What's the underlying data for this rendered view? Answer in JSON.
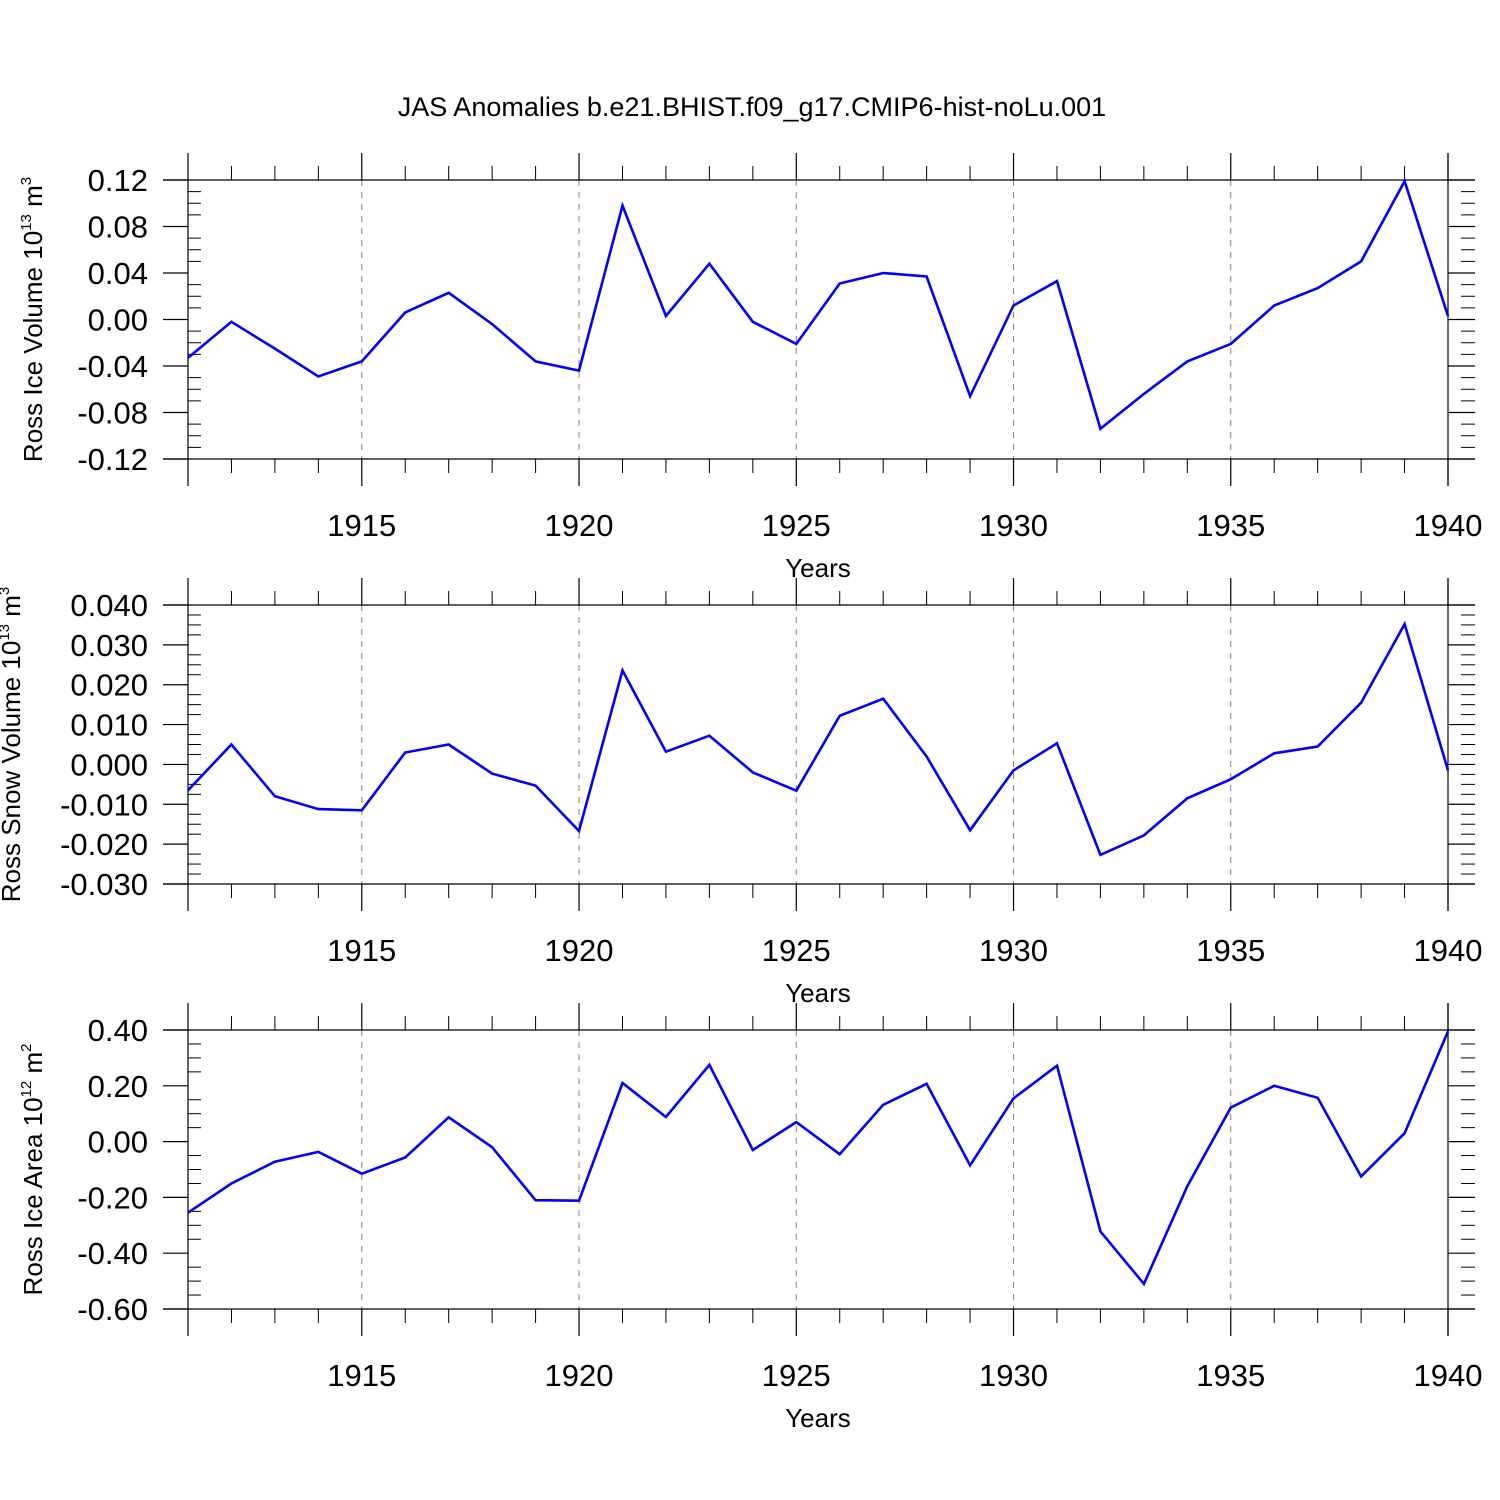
{
  "title": "JAS Anomalies b.e21.BHIST.f09_g17.CMIP6-hist-noLu.001",
  "colors": {
    "line": "#0000ff",
    "axis": "#000000",
    "grid": "#808080"
  },
  "chart_data": [
    {
      "type": "line",
      "ylabel": {
        "prefix": "Ross Ice Volume 10",
        "exp": "13",
        "unit": " m",
        "unit_exp": "3"
      },
      "xlabel": "Years",
      "xlim": [
        1911,
        1940
      ],
      "ylim": [
        -0.12,
        0.12
      ],
      "yticks": [
        -0.12,
        -0.08,
        -0.04,
        0.0,
        0.04,
        0.08,
        0.12
      ],
      "ytick_labels": [
        "-0.12",
        "-0.08",
        "-0.04",
        "0.00",
        "0.04",
        "0.08",
        "0.12"
      ],
      "xticks": [
        1915,
        1920,
        1925,
        1930,
        1935,
        1940
      ],
      "xtick_labels": [
        "1915",
        "1920",
        "1925",
        "1930",
        "1935",
        "1940"
      ],
      "x": [
        1911,
        1912,
        1913,
        1914,
        1915,
        1916,
        1917,
        1918,
        1919,
        1920,
        1921,
        1922,
        1923,
        1924,
        1925,
        1926,
        1927,
        1928,
        1929,
        1930,
        1931,
        1932,
        1933,
        1934,
        1935,
        1936,
        1937,
        1938,
        1939,
        1940
      ],
      "series": [
        {
          "values": [
            -0.033,
            -0.002,
            -0.025,
            -0.049,
            -0.036,
            0.006,
            0.023,
            -0.004,
            -0.036,
            -0.044,
            0.098,
            0.003,
            0.048,
            -0.002,
            -0.021,
            0.031,
            0.04,
            0.037,
            -0.066,
            0.012,
            0.033,
            -0.094,
            -0.064,
            -0.036,
            -0.021,
            0.012,
            0.027,
            0.05,
            0.119,
            0.003
          ]
        }
      ]
    },
    {
      "type": "line",
      "ylabel": {
        "prefix": "Ross Snow Volume 10",
        "exp": "13",
        "unit": " m",
        "unit_exp": "3"
      },
      "xlabel": "Years",
      "xlim": [
        1911,
        1940
      ],
      "ylim": [
        -0.03,
        0.04
      ],
      "yticks": [
        -0.03,
        -0.02,
        -0.01,
        0.0,
        0.01,
        0.02,
        0.03,
        0.04
      ],
      "ytick_labels": [
        "-0.030",
        "-0.020",
        "-0.010",
        "0.000",
        "0.010",
        "0.020",
        "0.030",
        "0.040"
      ],
      "xticks": [
        1915,
        1920,
        1925,
        1930,
        1935,
        1940
      ],
      "xtick_labels": [
        "1915",
        "1920",
        "1925",
        "1930",
        "1935",
        "1940"
      ],
      "x": [
        1911,
        1912,
        1913,
        1914,
        1915,
        1916,
        1917,
        1918,
        1919,
        1920,
        1921,
        1922,
        1923,
        1924,
        1925,
        1926,
        1927,
        1928,
        1929,
        1930,
        1931,
        1932,
        1933,
        1934,
        1935,
        1936,
        1937,
        1938,
        1939,
        1940
      ],
      "series": [
        {
          "values": [
            -0.0065,
            0.005,
            -0.008,
            -0.0112,
            -0.0115,
            0.003,
            0.005,
            -0.0023,
            -0.0053,
            -0.0167,
            0.0236,
            0.0032,
            0.0072,
            -0.002,
            -0.0066,
            0.0122,
            0.0165,
            0.002,
            -0.0165,
            -0.0015,
            0.0053,
            -0.0227,
            -0.0178,
            -0.0085,
            -0.0037,
            0.0028,
            0.0045,
            0.0155,
            0.0352,
            -0.0015
          ]
        }
      ]
    },
    {
      "type": "line",
      "ylabel": {
        "prefix": "Ross Ice Area 10",
        "exp": "12",
        "unit": " m",
        "unit_exp": "2"
      },
      "xlabel": "Years",
      "xlim": [
        1911,
        1940
      ],
      "ylim": [
        -0.6,
        0.4
      ],
      "yticks": [
        -0.6,
        -0.4,
        -0.2,
        0.0,
        0.2,
        0.4
      ],
      "ytick_labels": [
        "-0.60",
        "-0.40",
        "-0.20",
        "0.00",
        "0.20",
        "0.40"
      ],
      "xticks": [
        1915,
        1920,
        1925,
        1930,
        1935,
        1940
      ],
      "xtick_labels": [
        "1915",
        "1920",
        "1925",
        "1930",
        "1935",
        "1940"
      ],
      "x": [
        1911,
        1912,
        1913,
        1914,
        1915,
        1916,
        1917,
        1918,
        1919,
        1920,
        1921,
        1922,
        1923,
        1924,
        1925,
        1926,
        1927,
        1928,
        1929,
        1930,
        1931,
        1932,
        1933,
        1934,
        1935,
        1936,
        1937,
        1938,
        1939,
        1940
      ],
      "series": [
        {
          "values": [
            -0.255,
            -0.15,
            -0.072,
            -0.037,
            -0.115,
            -0.057,
            0.087,
            -0.02,
            -0.21,
            -0.212,
            0.21,
            0.088,
            0.275,
            -0.03,
            0.07,
            -0.045,
            0.132,
            0.207,
            -0.085,
            0.155,
            0.272,
            -0.322,
            -0.51,
            -0.16,
            0.122,
            0.2,
            0.157,
            -0.125,
            0.03,
            0.395
          ]
        }
      ]
    }
  ]
}
